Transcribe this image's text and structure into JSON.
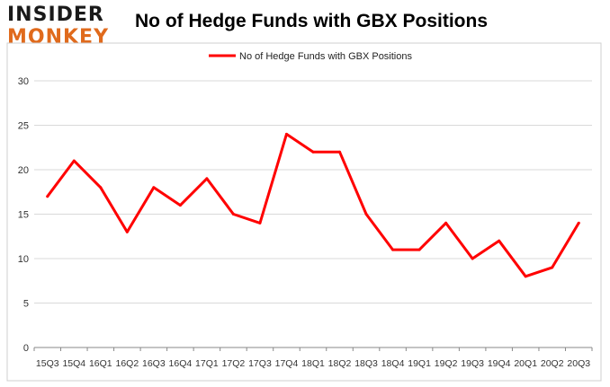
{
  "logo": {
    "line1": "INSIDER",
    "line2": "MONKEY"
  },
  "chart_data": {
    "type": "line",
    "title": "No of Hedge Funds with GBX Positions",
    "xlabel": "",
    "ylabel": "",
    "ylim": [
      0,
      30
    ],
    "yticks": [
      0,
      5,
      10,
      15,
      20,
      25,
      30
    ],
    "grid": true,
    "legend": "top-center",
    "categories": [
      "15Q3",
      "15Q4",
      "16Q1",
      "16Q2",
      "16Q3",
      "16Q4",
      "17Q1",
      "17Q2",
      "17Q3",
      "17Q4",
      "18Q1",
      "18Q2",
      "18Q3",
      "18Q4",
      "19Q1",
      "19Q2",
      "19Q3",
      "19Q4",
      "20Q1",
      "20Q2",
      "20Q3"
    ],
    "series": [
      {
        "name": "No of Hedge Funds with GBX Positions",
        "color": "#ff0000",
        "values": [
          17,
          21,
          18,
          13,
          18,
          16,
          19,
          15,
          14,
          24,
          22,
          22,
          15,
          11,
          11,
          14,
          10,
          12,
          8,
          9,
          14
        ]
      }
    ]
  }
}
